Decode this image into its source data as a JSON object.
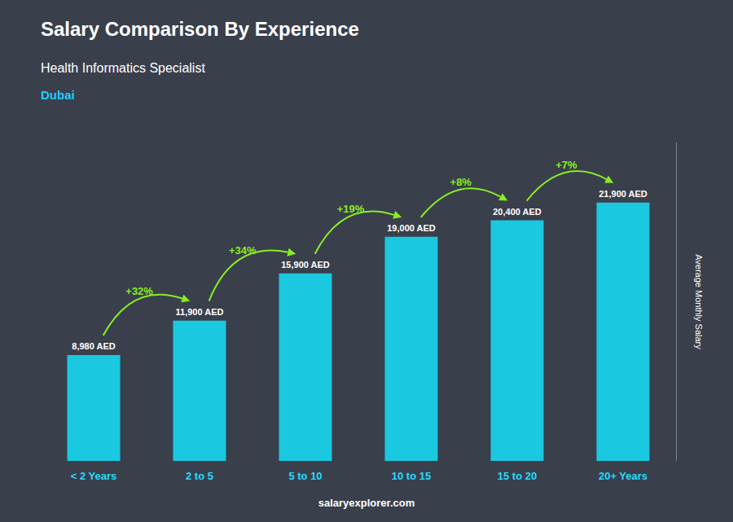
{
  "chart_data": {
    "type": "bar",
    "title": "Salary Comparison By Experience",
    "subtitle": "Health Informatics Specialist",
    "annotations": [
      "Dubai",
      "salaryexplorer.com"
    ],
    "ylabel": "Average Monthly Salary",
    "categories": [
      "< 2 Years",
      "2 to 5",
      "5 to 10",
      "10 to 15",
      "15 to 20",
      "20+ Years"
    ],
    "values": [
      8980,
      11900,
      15900,
      19000,
      20400,
      21900
    ],
    "value_labels": [
      "8,980 AED",
      "11,900 AED",
      "15,900 AED",
      "19,000 AED",
      "20,400 AED",
      "21,900 AED"
    ],
    "change_labels": [
      null,
      "+32%",
      "+34%",
      "+19%",
      "+8%",
      "+7%"
    ],
    "color": "#1ac8e0",
    "ylim": [
      0,
      27000
    ],
    "grid": false,
    "data_labels": true,
    "tick_labels": "x"
  }
}
